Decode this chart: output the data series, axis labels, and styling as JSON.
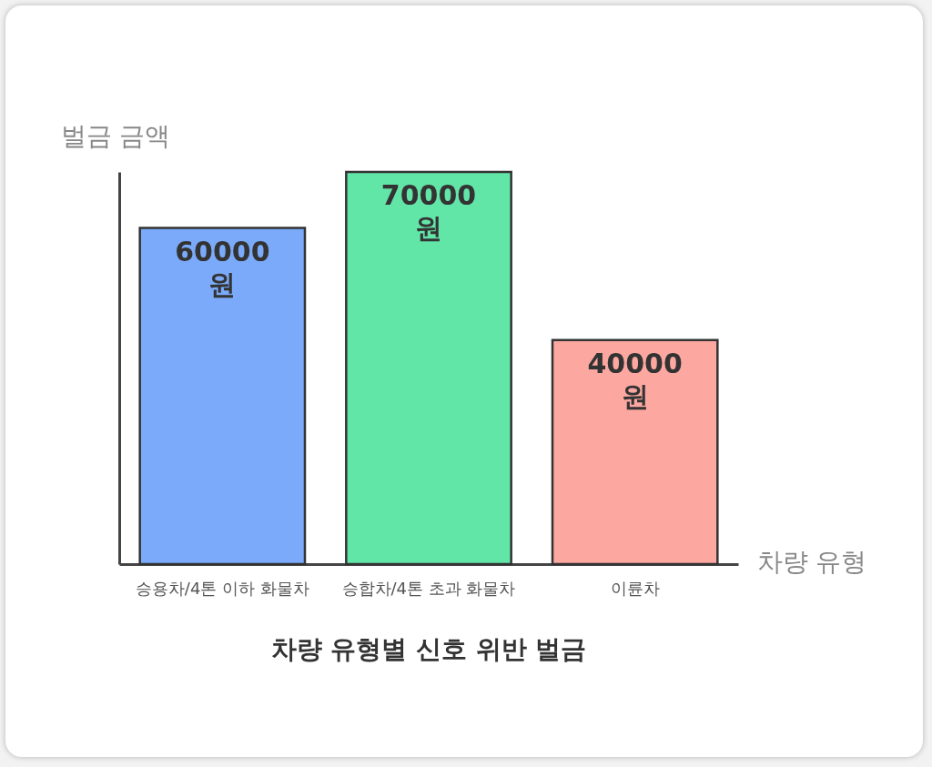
{
  "chart_data": {
    "type": "bar",
    "title": "차량 유형별 신호 위반 벌금",
    "xlabel": "차량 유형",
    "ylabel": "벌금 금액",
    "categories": [
      "승용차/4톤 이하 화물차",
      "승합차/4톤 초과 화물차",
      "이륜차"
    ],
    "values": [
      60000,
      70000,
      40000
    ],
    "value_labels": [
      "60000 원",
      "70000 원",
      "40000 원"
    ],
    "colors": [
      "#7aaaf9",
      "#62e6a8",
      "#fda7a1"
    ],
    "grid": false,
    "tick_labels": "x"
  }
}
